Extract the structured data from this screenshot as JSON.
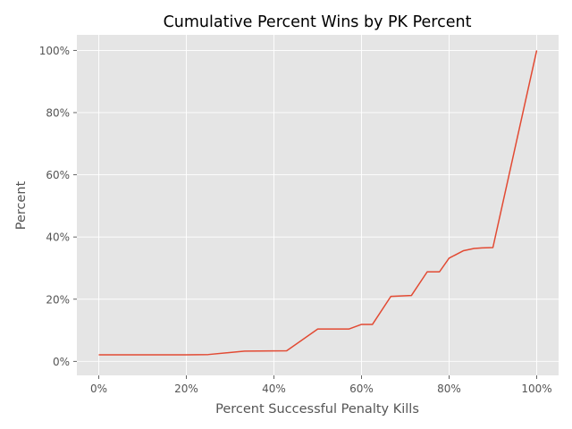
{
  "chart_data": {
    "type": "line",
    "title": "Cumulative Percent Wins by PK Percent",
    "xlabel": "Percent Successful Penalty Kills",
    "ylabel": "Percent",
    "xlim": [
      -5,
      105
    ],
    "ylim": [
      -4.5,
      105
    ],
    "x_ticks": [
      0,
      20,
      40,
      60,
      80,
      100
    ],
    "x_tick_labels": [
      "0%",
      "20%",
      "40%",
      "60%",
      "80%",
      "100%"
    ],
    "y_ticks": [
      0,
      20,
      40,
      60,
      80,
      100
    ],
    "y_tick_labels": [
      "0%",
      "20%",
      "40%",
      "60%",
      "80%",
      "100%"
    ],
    "grid": true,
    "legend": "none",
    "series": [
      {
        "color": "#E24A33",
        "x": [
          0,
          20,
          25,
          33.3,
          42.9,
          50,
          57.1,
          60,
          62.5,
          66.7,
          71.4,
          75,
          77.8,
          80,
          83.3,
          85.7,
          87.5,
          90,
          100
        ],
        "y": [
          2.1,
          2.1,
          2.2,
          3.3,
          3.4,
          10.4,
          10.4,
          11.9,
          11.9,
          20.9,
          21.2,
          28.8,
          28.8,
          33.2,
          35.6,
          36.3,
          36.5,
          36.6,
          100
        ]
      }
    ],
    "style": {
      "background": "#E5E5E5",
      "grid_color": "#FFFFFF"
    }
  }
}
